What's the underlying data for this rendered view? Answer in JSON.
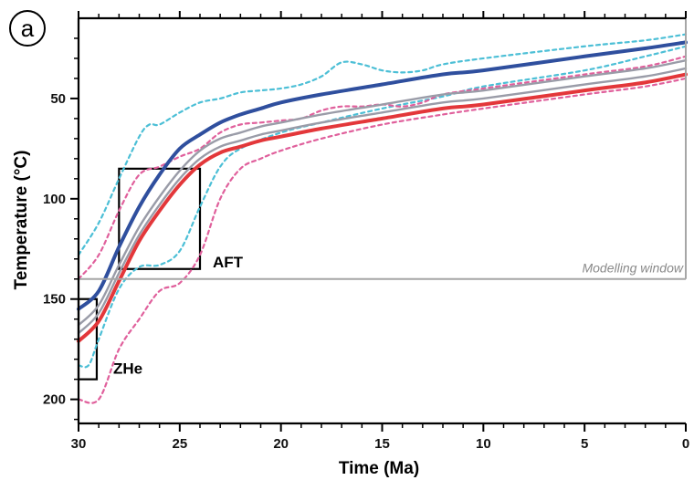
{
  "panel_label": "a",
  "chart_data": {
    "type": "line",
    "title": "",
    "xlabel": "Time (Ma)",
    "ylabel": "Temperature (°C)",
    "xlim": [
      30,
      0
    ],
    "ylim": [
      10,
      212
    ],
    "x_reversed": true,
    "y_inverted": true,
    "grid": false,
    "x_ticks": [
      30,
      25,
      20,
      15,
      10,
      5,
      0
    ],
    "y_ticks": [
      50,
      100,
      150,
      200
    ],
    "series": [
      {
        "style": "blue-solid",
        "color": "#2f4f9e",
        "points": [
          [
            30,
            155
          ],
          [
            29,
            146
          ],
          [
            28,
            124
          ],
          [
            27,
            104
          ],
          [
            26,
            88
          ],
          [
            25,
            75
          ],
          [
            24,
            68
          ],
          [
            23,
            62
          ],
          [
            22,
            58
          ],
          [
            21,
            55
          ],
          [
            20,
            52
          ],
          [
            18,
            48
          ],
          [
            15,
            43
          ],
          [
            12,
            38
          ],
          [
            10,
            36
          ],
          [
            5,
            29
          ],
          [
            2,
            25
          ],
          [
            0,
            22
          ]
        ]
      },
      {
        "style": "grey-solid-upper",
        "color": "#9a9ca8",
        "points": [
          [
            30,
            163
          ],
          [
            29,
            153
          ],
          [
            28,
            133
          ],
          [
            27,
            114
          ],
          [
            26,
            99
          ],
          [
            25,
            86
          ],
          [
            24,
            76
          ],
          [
            23,
            70
          ],
          [
            22,
            67
          ],
          [
            21,
            64
          ],
          [
            20,
            62
          ],
          [
            18,
            58
          ],
          [
            15,
            53
          ],
          [
            12,
            48
          ],
          [
            10,
            46
          ],
          [
            5,
            39
          ],
          [
            2,
            35
          ],
          [
            0,
            31
          ]
        ]
      },
      {
        "style": "grey-solid-lower",
        "color": "#9a9ca8",
        "points": [
          [
            30,
            167
          ],
          [
            29,
            157
          ],
          [
            28,
            137
          ],
          [
            27,
            118
          ],
          [
            26,
            103
          ],
          [
            25,
            90
          ],
          [
            24,
            80
          ],
          [
            23,
            74
          ],
          [
            22,
            71
          ],
          [
            21,
            68
          ],
          [
            20,
            66
          ],
          [
            18,
            62
          ],
          [
            15,
            57
          ],
          [
            12,
            52
          ],
          [
            10,
            50
          ],
          [
            5,
            43
          ],
          [
            2,
            39
          ],
          [
            0,
            35
          ]
        ]
      },
      {
        "style": "red-solid",
        "color": "#e3373a",
        "points": [
          [
            30,
            171
          ],
          [
            29,
            161
          ],
          [
            28,
            141
          ],
          [
            27,
            121
          ],
          [
            26,
            106
          ],
          [
            25,
            93
          ],
          [
            24,
            83
          ],
          [
            23,
            77
          ],
          [
            22,
            74
          ],
          [
            21,
            71
          ],
          [
            20,
            69
          ],
          [
            18,
            65
          ],
          [
            15,
            60
          ],
          [
            12,
            55
          ],
          [
            10,
            53
          ],
          [
            5,
            46
          ],
          [
            2,
            42
          ],
          [
            0,
            38
          ]
        ]
      },
      {
        "style": "cyan-dashed-upper",
        "color": "#4cbfd6",
        "points": [
          [
            30,
            128
          ],
          [
            29,
            112
          ],
          [
            28,
            90
          ],
          [
            27,
            69
          ],
          [
            26.5,
            63
          ],
          [
            26,
            63
          ],
          [
            25,
            57
          ],
          [
            24,
            52
          ],
          [
            23,
            50
          ],
          [
            22,
            47
          ],
          [
            21,
            46
          ],
          [
            20,
            45
          ],
          [
            19,
            43
          ],
          [
            18,
            39
          ],
          [
            17,
            32
          ],
          [
            16,
            33
          ],
          [
            15,
            36
          ],
          [
            14,
            37
          ],
          [
            13,
            36
          ],
          [
            12,
            33
          ],
          [
            10,
            30
          ],
          [
            5,
            24
          ],
          [
            2,
            21
          ],
          [
            0,
            18
          ]
        ]
      },
      {
        "style": "cyan-dashed-lower",
        "color": "#4cbfd6",
        "points": [
          [
            30,
            183
          ],
          [
            29.5,
            183
          ],
          [
            29,
            170
          ],
          [
            28,
            145
          ],
          [
            27,
            134
          ],
          [
            26,
            133
          ],
          [
            25,
            126
          ],
          [
            24,
            104
          ],
          [
            23,
            84
          ],
          [
            22,
            75
          ],
          [
            20,
            67
          ],
          [
            18,
            62
          ],
          [
            15,
            55
          ],
          [
            12,
            49
          ],
          [
            10,
            44
          ],
          [
            5,
            36
          ],
          [
            2,
            29
          ],
          [
            0,
            24
          ]
        ]
      },
      {
        "style": "pink-dashed-upper",
        "color": "#e0609c",
        "points": [
          [
            30,
            140
          ],
          [
            29,
            128
          ],
          [
            28,
            106
          ],
          [
            27,
            88
          ],
          [
            26,
            84
          ],
          [
            25,
            79
          ],
          [
            24,
            75
          ],
          [
            23,
            67
          ],
          [
            22,
            63
          ],
          [
            21,
            62
          ],
          [
            20,
            61
          ],
          [
            19,
            60
          ],
          [
            18,
            56
          ],
          [
            17,
            54
          ],
          [
            16,
            54
          ],
          [
            15,
            53
          ],
          [
            14,
            54
          ],
          [
            13,
            52
          ],
          [
            12,
            48
          ],
          [
            10,
            45
          ],
          [
            5,
            38
          ],
          [
            2,
            34
          ],
          [
            0,
            29
          ]
        ]
      },
      {
        "style": "pink-dashed-lower",
        "color": "#e0609c",
        "points": [
          [
            30,
            200
          ],
          [
            29,
            200
          ],
          [
            28,
            175
          ],
          [
            27,
            160
          ],
          [
            26,
            146
          ],
          [
            25,
            142
          ],
          [
            24,
            128
          ],
          [
            23,
            100
          ],
          [
            22,
            85
          ],
          [
            21,
            80
          ],
          [
            20,
            76
          ],
          [
            18,
            70
          ],
          [
            15,
            63
          ],
          [
            12,
            58
          ],
          [
            10,
            55
          ],
          [
            5,
            48
          ],
          [
            2,
            44
          ],
          [
            0,
            40
          ]
        ]
      }
    ],
    "boxes": [
      {
        "label": "AFT",
        "x": [
          28,
          24
        ],
        "y": [
          85,
          135
        ]
      },
      {
        "label": "ZHe",
        "x": [
          30,
          29.1
        ],
        "y": [
          150,
          190
        ]
      }
    ],
    "modelling_window": {
      "label": "Modelling window",
      "temperature": 140
    }
  }
}
